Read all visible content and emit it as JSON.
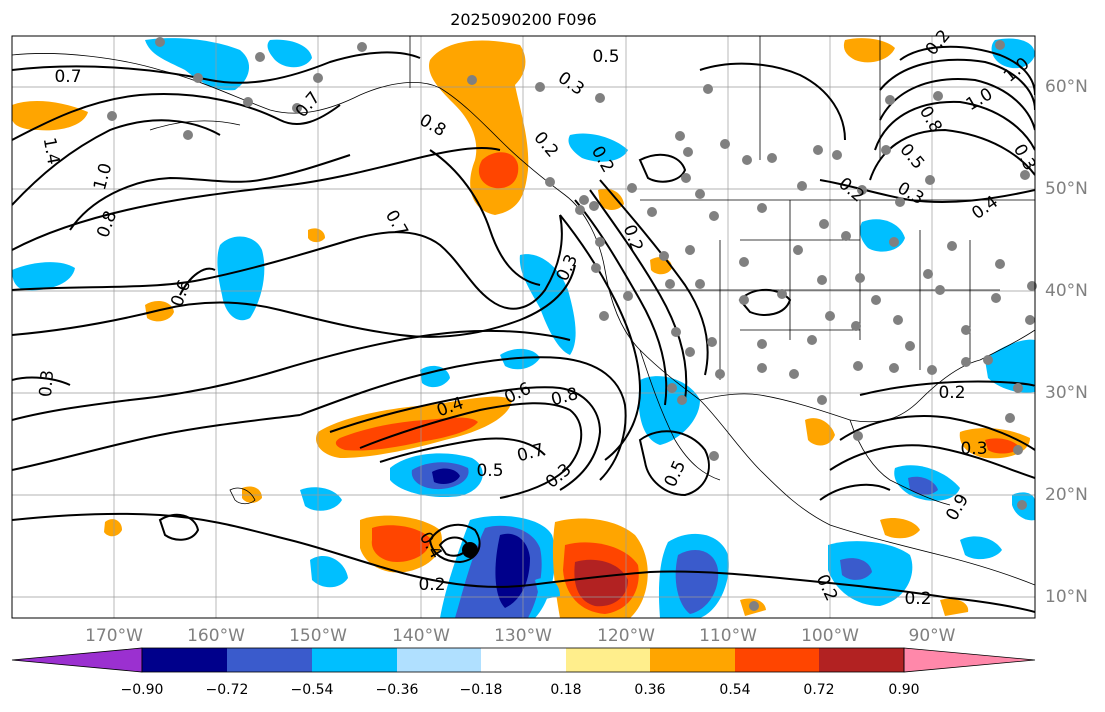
{
  "title": "2025090200 F096",
  "map": {
    "projection": "lat-lon",
    "lon_range": [
      "180°W",
      "80°W"
    ],
    "lat_range": [
      "8°N",
      "65°N"
    ],
    "lon_labels": [
      "170°W",
      "160°W",
      "150°W",
      "140°W",
      "130°W",
      "120°W",
      "110°W",
      "100°W",
      "90°W"
    ],
    "lat_labels": [
      "60°N",
      "50°N",
      "40°N",
      "30°N",
      "20°N",
      "10°N"
    ],
    "gridlines": true,
    "coastlines": true,
    "state_borders": true,
    "marker": "black dot near 15°N 135°W"
  },
  "contours": {
    "labels": [
      "0.7",
      "0.5",
      "0.3",
      "1.4",
      "1.0",
      "0.8",
      "0.6",
      "0.3",
      "0.2",
      "0.7",
      "0.8",
      "0.7",
      "0.3",
      "0.2",
      "0.2",
      "0.4",
      "0.6",
      "0.8",
      "0.7",
      "0.5",
      "0.3",
      "0.5",
      "0.4",
      "0.2",
      "0.2",
      "0.2",
      "0.3",
      "0.2",
      "0.9",
      "1.0",
      "0.8",
      "0.5",
      "0.3",
      "0.4",
      "0.2",
      "0.3",
      "1.0",
      "0.2"
    ]
  },
  "colorbar": {
    "ticks": [
      "−0.90",
      "−0.72",
      "−0.54",
      "−0.36",
      "−0.18",
      "0.18",
      "0.36",
      "0.54",
      "0.72",
      "0.90"
    ],
    "colors": [
      "#9b30d0",
      "#00008b",
      "#3a5bcc",
      "#00bfff",
      "#b0e0ff",
      "#ffffff",
      "#ffee8c",
      "#ffa500",
      "#ff4500",
      "#b22222",
      "#ff88aa"
    ],
    "extend": "both"
  }
}
